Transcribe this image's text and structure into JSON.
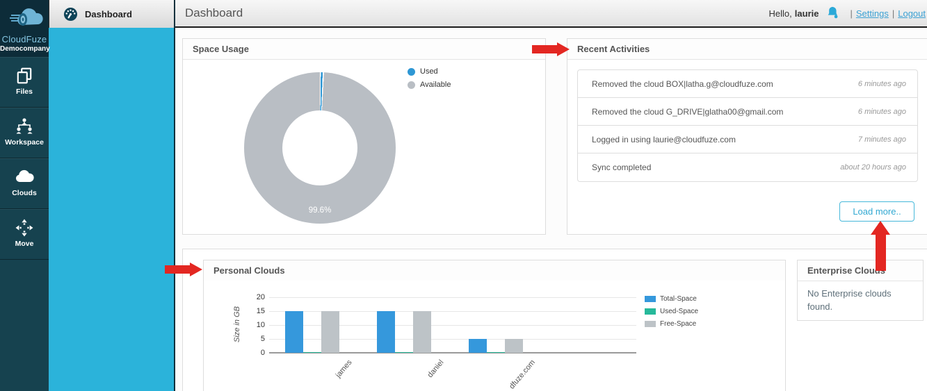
{
  "sidebar": {
    "brand": {
      "name": "CloudFuze",
      "company": "Democompany"
    },
    "items": [
      {
        "label": "Files",
        "icon": "files-icon"
      },
      {
        "label": "Workspace",
        "icon": "workspace-icon"
      },
      {
        "label": "Clouds",
        "icon": "clouds-icon"
      },
      {
        "label": "Move",
        "icon": "move-icon"
      }
    ]
  },
  "subnav": {
    "active_item": "Dashboard"
  },
  "header": {
    "title": "Dashboard",
    "greeting": "Hello,",
    "username": "laurie",
    "separator": "|",
    "settings_label": "Settings",
    "logout_label": "Logout"
  },
  "panels": {
    "space_usage": {
      "title": "Space Usage"
    },
    "recent_activities": {
      "title": "Recent Activities",
      "items": [
        {
          "text": "Removed the cloud BOX|latha.g@cloudfuze.com",
          "time": "6 minutes ago"
        },
        {
          "text": "Removed the cloud G_DRIVE|glatha00@gmail.com",
          "time": "6 minutes ago"
        },
        {
          "text": "Logged in using laurie@cloudfuze.com",
          "time": "7 minutes ago"
        },
        {
          "text": "Sync completed",
          "time": "about 20 hours ago"
        }
      ],
      "load_more_label": "Load more.."
    },
    "personal_clouds": {
      "title": "Personal Clouds"
    },
    "enterprise_clouds": {
      "title": "Enterprise Clouds",
      "empty_message": "No Enterprise clouds found."
    }
  },
  "chart_data": [
    {
      "type": "pie",
      "donut": true,
      "title": "Space Usage",
      "slices": [
        {
          "label": "Used",
          "value": 0.4,
          "color": "#2e97d4"
        },
        {
          "label": "Available",
          "value": 99.6,
          "color": "#b9bec4"
        }
      ],
      "center_label": "99.6%",
      "legend_position": "right"
    },
    {
      "type": "bar",
      "title": "Personal Clouds",
      "categories": [
        "james",
        "daniel",
        "dfuze.com"
      ],
      "series": [
        {
          "name": "Total-Space",
          "color": "#3598dc",
          "values": [
            15,
            15,
            5
          ]
        },
        {
          "name": "Used-Space",
          "color": "#26b99a",
          "values": [
            0.2,
            0.2,
            0.2
          ]
        },
        {
          "name": "Free-Space",
          "color": "#bdc3c7",
          "values": [
            15,
            15,
            5
          ]
        }
      ],
      "ylabel": "Size in GB",
      "ylim": [
        0,
        20
      ],
      "yticks": [
        0,
        5,
        10,
        15,
        20
      ],
      "grid": true,
      "legend_position": "right"
    }
  ],
  "annotations": {
    "arrow_color": "#e32722"
  }
}
